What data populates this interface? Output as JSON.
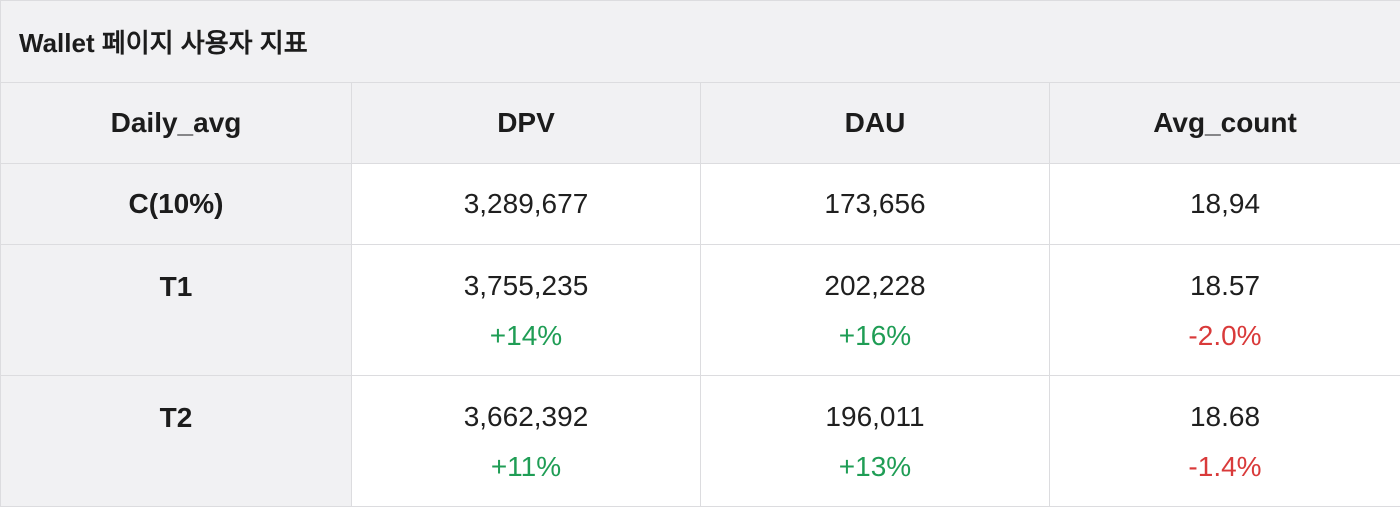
{
  "title": "Wallet 페이지 사용자 지표",
  "header": {
    "col0": "Daily_avg",
    "col1": "DPV",
    "col2": "DAU",
    "col3": "Avg_count"
  },
  "rows": [
    {
      "label": "C(10%)",
      "dpv": "3,289,677",
      "dau": "173,656",
      "avg": "18,94"
    },
    {
      "label": "T1",
      "dpv": "3,755,235",
      "dpv_change": "+14%",
      "dau": "202,228",
      "dau_change": "+16%",
      "avg": "18.57",
      "avg_change": "-2.0%"
    },
    {
      "label": "T2",
      "dpv": "3,662,392",
      "dpv_change": "+11%",
      "dau": "196,011",
      "dau_change": "+13%",
      "avg": "18.68",
      "avg_change": "-1.4%"
    }
  ],
  "colors": {
    "positive": "#1f9d55",
    "negative": "#d93a3a",
    "header_bg": "#f1f1f3",
    "border": "#dcdcdf"
  }
}
